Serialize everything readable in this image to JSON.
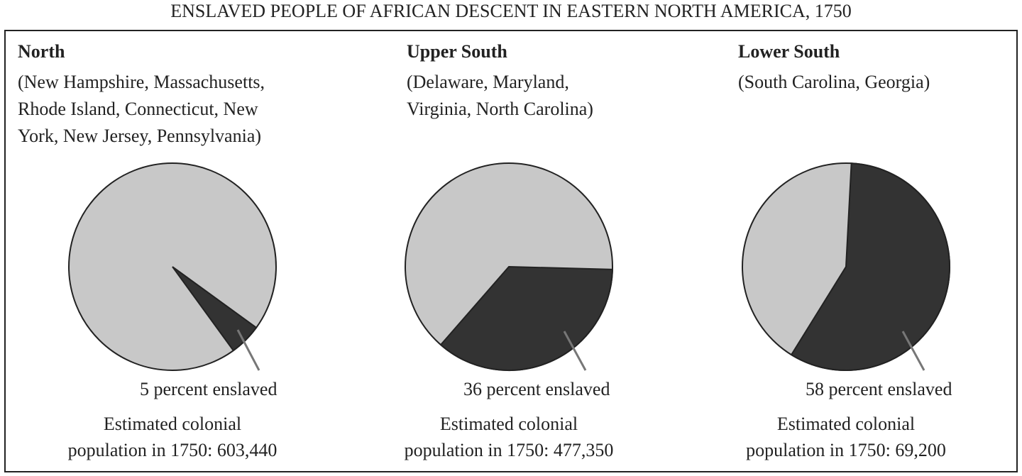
{
  "title": "ENSLAVED PEOPLE OF AFRICAN DESCENT IN EASTERN NORTH AMERICA, 1750",
  "chart_data": [
    {
      "type": "pie",
      "title": "North",
      "subtitle": [
        "(New Hampshire, Massachusetts,",
        "Rhode Island, Connecticut, New",
        "York, New Jersey, Pennsylvania)"
      ],
      "values": [
        5
      ],
      "value_labels": [
        "5 percent enslaved"
      ],
      "color": "#333333",
      "background_color": "#c8c8c8",
      "note": [
        "Estimated colonial",
        "population in 1750: 603,440"
      ]
    },
    {
      "type": "pie",
      "title": "Upper South",
      "subtitle": [
        "(Delaware, Maryland,",
        "Virginia, North Carolina)"
      ],
      "values": [
        36
      ],
      "value_labels": [
        "36 percent enslaved"
      ],
      "color": "#333333",
      "background_color": "#c8c8c8",
      "note": [
        "Estimated colonial",
        "population in 1750: 477,350"
      ]
    },
    {
      "type": "pie",
      "title": "Lower South",
      "subtitle": [
        "(South Carolina, Georgia)"
      ],
      "values": [
        58
      ],
      "value_labels": [
        "58 percent enslaved"
      ],
      "color": "#333333",
      "background_color": "#c8c8c8",
      "note": [
        "Estimated colonial",
        "population in 1750: 69,200"
      ]
    }
  ]
}
